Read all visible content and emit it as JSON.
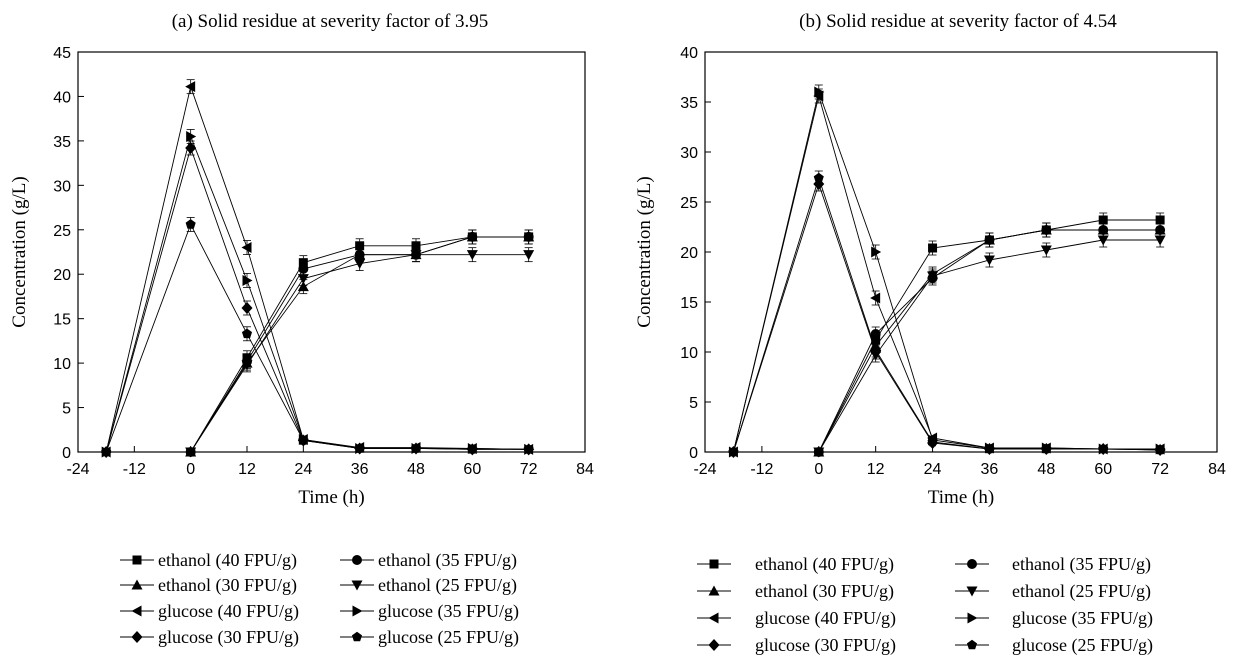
{
  "chart_data": [
    {
      "type": "line",
      "title": "(a) Solid residue at severity factor of 3.95",
      "xlabel": "Time (h)",
      "ylabel": "Concentration (g/L)",
      "xlim": [
        -24,
        84
      ],
      "ylim": [
        0,
        45
      ],
      "xticks": [
        -24,
        -12,
        0,
        12,
        24,
        36,
        48,
        60,
        72,
        84
      ],
      "yticks": [
        0,
        5,
        10,
        15,
        20,
        25,
        30,
        35,
        40,
        45
      ],
      "grid": false,
      "legend_position": "below",
      "series": [
        {
          "name": "ethanol (40 FPU/g)",
          "marker": "square",
          "x": [
            0,
            12,
            24,
            36,
            48,
            60,
            72
          ],
          "y": [
            0,
            10.6,
            21.3,
            23.2,
            23.2,
            24.2,
            24.2
          ]
        },
        {
          "name": "ethanol (35 FPU/g)",
          "marker": "circle",
          "x": [
            0,
            12,
            24,
            36,
            48,
            60,
            72
          ],
          "y": [
            0,
            10.2,
            20.6,
            22.2,
            22.2,
            24.2,
            24.2
          ]
        },
        {
          "name": "ethanol (30 FPU/g)",
          "marker": "triangle-up",
          "x": [
            0,
            12,
            24,
            36,
            48,
            60,
            72
          ],
          "y": [
            0,
            10.0,
            18.6,
            22.2,
            22.2,
            24.2,
            24.2
          ]
        },
        {
          "name": "ethanol (25 FPU/g)",
          "marker": "triangle-down",
          "x": [
            0,
            12,
            24,
            36,
            48,
            60,
            72
          ],
          "y": [
            0,
            9.8,
            19.5,
            21.2,
            22.2,
            22.2,
            22.2
          ]
        },
        {
          "name": "glucose (40 FPU/g)",
          "marker": "triangle-left",
          "x": [
            -18,
            0,
            12,
            24,
            36,
            48,
            60,
            72
          ],
          "y": [
            0,
            41.1,
            23.0,
            1.4,
            0.5,
            0.5,
            0.4,
            0.3
          ]
        },
        {
          "name": "glucose (35 FPU/g)",
          "marker": "triangle-right",
          "x": [
            -18,
            0,
            12,
            24,
            36,
            48,
            60,
            72
          ],
          "y": [
            0,
            35.5,
            19.3,
            1.4,
            0.4,
            0.4,
            0.4,
            0.3
          ]
        },
        {
          "name": "glucose (30 FPU/g)",
          "marker": "diamond",
          "x": [
            -18,
            0,
            12,
            24,
            36,
            48,
            60,
            72
          ],
          "y": [
            0,
            34.2,
            16.2,
            1.3,
            0.4,
            0.4,
            0.3,
            0.3
          ]
        },
        {
          "name": "glucose (25 FPU/g)",
          "marker": "pentagon",
          "x": [
            -18,
            0,
            12,
            24,
            36,
            48,
            60,
            72
          ],
          "y": [
            0,
            25.6,
            13.3,
            1.3,
            0.4,
            0.4,
            0.3,
            0.3
          ]
        }
      ]
    },
    {
      "type": "line",
      "title": "(b) Solid residue at severity factor of 4.54",
      "xlabel": "Time (h)",
      "ylabel": "Concentration (g/L)",
      "xlim": [
        -24,
        84
      ],
      "ylim": [
        0,
        40
      ],
      "xticks": [
        -24,
        -12,
        0,
        12,
        24,
        36,
        48,
        60,
        72,
        84
      ],
      "yticks": [
        0,
        5,
        10,
        15,
        20,
        25,
        30,
        35,
        40
      ],
      "grid": false,
      "legend_position": "below",
      "series": [
        {
          "name": "ethanol (40 FPU/g)",
          "marker": "square",
          "x": [
            0,
            12,
            24,
            36,
            48,
            60,
            72
          ],
          "y": [
            0,
            11.2,
            20.4,
            21.2,
            22.2,
            23.2,
            23.2
          ]
        },
        {
          "name": "ethanol (35 FPU/g)",
          "marker": "circle",
          "x": [
            0,
            12,
            24,
            36,
            48,
            60,
            72
          ],
          "y": [
            0,
            11.8,
            17.4,
            21.2,
            22.2,
            22.2,
            22.2
          ]
        },
        {
          "name": "ethanol (30 FPU/g)",
          "marker": "triangle-up",
          "x": [
            0,
            12,
            24,
            36,
            48,
            60,
            72
          ],
          "y": [
            0,
            10.6,
            17.8,
            21.2,
            22.2,
            22.2,
            22.2
          ]
        },
        {
          "name": "ethanol (25 FPU/g)",
          "marker": "triangle-down",
          "x": [
            0,
            12,
            24,
            36,
            48,
            60,
            72
          ],
          "y": [
            0,
            9.7,
            17.6,
            19.2,
            20.2,
            21.2,
            21.2
          ]
        },
        {
          "name": "glucose (40 FPU/g)",
          "marker": "triangle-left",
          "x": [
            -18,
            0,
            12,
            24,
            36,
            48,
            60,
            72
          ],
          "y": [
            0,
            35.6,
            15.4,
            1.4,
            0.4,
            0.4,
            0.3,
            0.3
          ]
        },
        {
          "name": "glucose (35 FPU/g)",
          "marker": "triangle-right",
          "x": [
            -18,
            0,
            12,
            24,
            36,
            48,
            60,
            72
          ],
          "y": [
            0,
            36.0,
            20.0,
            1.2,
            0.4,
            0.4,
            0.3,
            0.3
          ]
        },
        {
          "name": "glucose (30 FPU/g)",
          "marker": "diamond",
          "x": [
            -18,
            0,
            12,
            24,
            36,
            48,
            60,
            72
          ],
          "y": [
            0,
            26.8,
            10.0,
            0.9,
            0.3,
            0.3,
            0.3,
            0.2
          ]
        },
        {
          "name": "glucose (25 FPU/g)",
          "marker": "pentagon",
          "x": [
            -18,
            0,
            12,
            24,
            36,
            48,
            60,
            72
          ],
          "y": [
            0,
            27.4,
            10.2,
            1.0,
            0.3,
            0.3,
            0.3,
            0.2
          ]
        }
      ]
    }
  ]
}
